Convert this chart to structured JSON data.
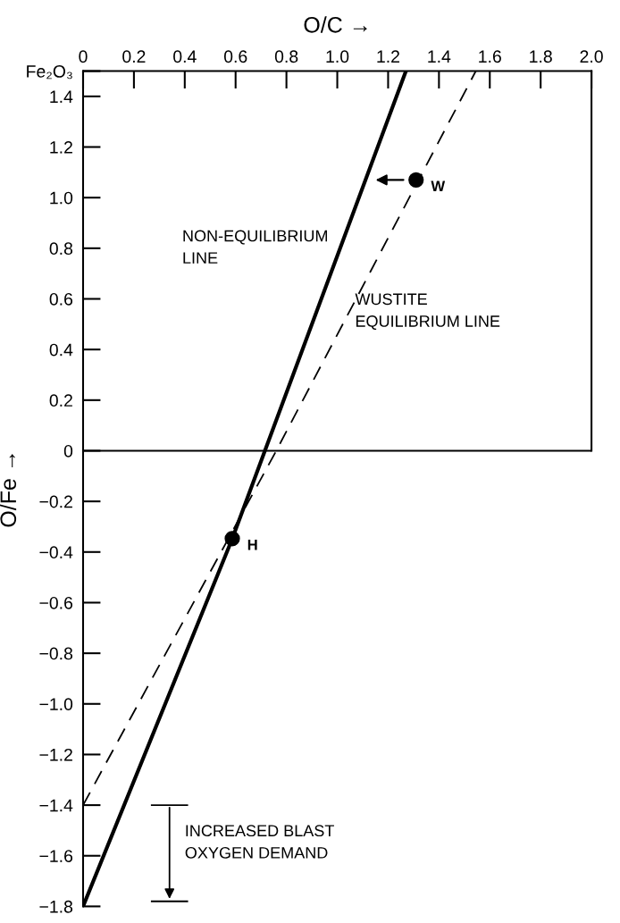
{
  "chart_data": {
    "type": "line",
    "xlabel": "O/C →",
    "ylabel": "O/Fe →",
    "series": [
      {
        "x": [
          0,
          0.587,
          1.27
        ],
        "values": [
          -1.8,
          -0.347,
          1.5
        ],
        "color": "#000000",
        "line_style": "solid"
      },
      {
        "x": [
          0,
          0.76,
          1.545
        ],
        "values": [
          -1.4,
          0,
          1.5
        ],
        "color": "#000000",
        "line_style": "dashed"
      },
      {
        "type": "scatter",
        "x": [
          1.31,
          0.587
        ],
        "values": [
          1.07,
          -0.347
        ],
        "color": "#000000",
        "marker": "circle"
      }
    ],
    "xlim": [
      0,
      2
    ],
    "ylim": [
      -1.8,
      1.5
    ],
    "xticks": [
      0,
      0.2,
      0.4,
      0.6,
      0.8,
      {
        "value": 1.0,
        "label": "1.0"
      },
      1.2,
      1.4,
      1.6,
      1.8,
      {
        "value": 2.0,
        "label": "2.0"
      }
    ],
    "yticks": [
      {
        "value": -1.8,
        "label": "−1.8"
      },
      {
        "value": -1.6,
        "label": "−1.6"
      },
      {
        "value": -1.4,
        "label": "−1.4"
      },
      {
        "value": -1.2,
        "label": "−1.2"
      },
      {
        "value": -1.0,
        "label": "−1.0"
      },
      {
        "value": -0.8,
        "label": "−0.8"
      },
      {
        "value": -0.6,
        "label": "−0.6"
      },
      {
        "value": -0.4,
        "label": "−0.4"
      },
      {
        "value": -0.2,
        "label": "−0.2"
      },
      0,
      0.2,
      0.4,
      0.6,
      0.8,
      {
        "value": 1.0,
        "label": "1.0"
      },
      1.2,
      1.4,
      {
        "value": 1.5,
        "label": "Fe₂O₃"
      }
    ],
    "ref_lines": [
      {
        "axis": "y",
        "value": 0,
        "color": "#000000"
      }
    ],
    "annotations": [
      {
        "text": "W",
        "x": 1.31,
        "y": 1.07
      },
      {
        "text": "H",
        "x": 0.587,
        "y": -0.347
      },
      "NON-EQUILIBRIUM\nLINE",
      "WUSTITE\nEQUILIBRIUM LINE",
      "INCREASED BLAST\nOXYGEN DEMAND"
    ],
    "grid": false,
    "legend": false
  }
}
